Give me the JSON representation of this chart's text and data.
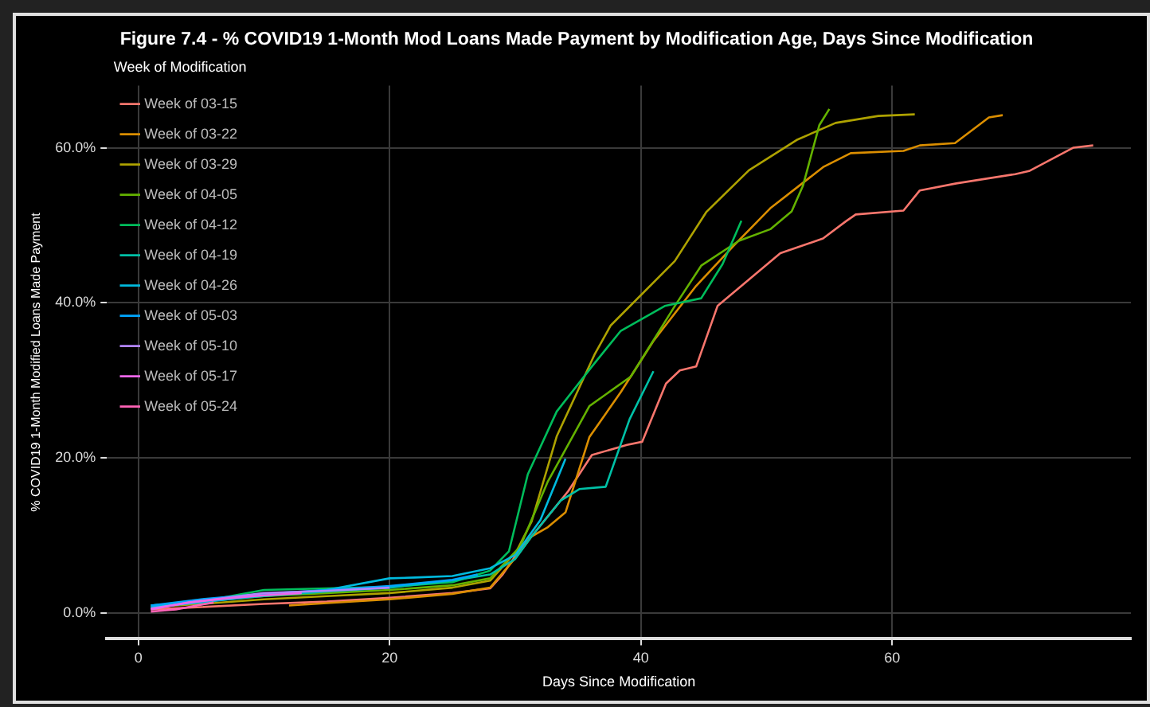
{
  "chart_data": {
    "type": "line",
    "title": "Figure 7.4 - % COVID19 1-Month Mod Loans Made Payment by Modification Age, Days Since Modification",
    "xlabel": "Days Since Modification",
    "ylabel": "% COVID19 1-Month Modified Loans Made Payment",
    "legend_title": "Week of Modification",
    "legend": "top left",
    "grid": true,
    "marker": "none",
    "line_style": "solid",
    "xlim": [
      -2.5,
      79
    ],
    "xticks": [
      0,
      20,
      40,
      60
    ],
    "ylim": [
      -3.3,
      68
    ],
    "yticks": [
      {
        "value": 0,
        "label": "0.0%"
      },
      {
        "value": 20,
        "label": "20.0%"
      },
      {
        "value": 40,
        "label": "40.0%"
      },
      {
        "value": 60,
        "label": "60.0%"
      }
    ],
    "series": [
      {
        "name": "Week of 03-15",
        "color": "#f8766d",
        "x": [
          1,
          5,
          10,
          15,
          20,
          25,
          28,
          29,
          30.1,
          31.6,
          34.2,
          36.1,
          38.9,
          40.1,
          42,
          43.1,
          44.4,
          46.1,
          51.1,
          54.5,
          56.3,
          57.1,
          60.9,
          62.2,
          65.1,
          69.8,
          70.9,
          74.4,
          76
        ],
        "values": [
          0.5,
          0.8,
          1.2,
          1.5,
          2,
          2.6,
          3.2,
          5,
          7.6,
          10.5,
          15.7,
          20.4,
          21.7,
          22.1,
          29.6,
          31.3,
          31.8,
          39.6,
          46.4,
          48.3,
          50.5,
          51.4,
          51.9,
          54.5,
          55.4,
          56.6,
          57,
          60,
          60.3
        ]
      },
      {
        "name": "Week of 03-22",
        "color": "#db8e00",
        "x": [
          12,
          15,
          20,
          25,
          28,
          30.1,
          31.3,
          32.6,
          34,
          35.9,
          38.4,
          41,
          44.4,
          47.4,
          50.3,
          54.5,
          56.7,
          60.9,
          62.2,
          65,
          67.7,
          68.8
        ],
        "values": [
          1,
          1.3,
          1.8,
          2.5,
          3.3,
          7.3,
          9.9,
          11.1,
          13,
          22.7,
          28.5,
          35.1,
          42.2,
          47.4,
          52.2,
          57.5,
          59.3,
          59.6,
          60.3,
          60.6,
          63.9,
          64.2
        ]
      },
      {
        "name": "Week of 03-29",
        "color": "#aea200",
        "x": [
          1,
          5,
          10,
          15,
          20,
          25,
          28,
          30.1,
          31.3,
          33.3,
          36.3,
          37.6,
          42.7,
          45.2,
          48.6,
          52.4,
          55.5,
          58.9,
          61.8
        ],
        "values": [
          0.8,
          1.2,
          1.8,
          2.2,
          2.6,
          3.3,
          4.2,
          8,
          11.8,
          22.8,
          33.3,
          37.1,
          45.4,
          51.7,
          57.1,
          61,
          63.2,
          64.1,
          64.3
        ]
      },
      {
        "name": "Week of 04-05",
        "color": "#64b200",
        "x": [
          1,
          5,
          10,
          15,
          20,
          25,
          28,
          30.4,
          32.6,
          35.9,
          39.2,
          42.7,
          44.8,
          47.8,
          50.3,
          52,
          52.9,
          54.2,
          55
        ],
        "values": [
          1,
          1.5,
          2.2,
          2.6,
          3,
          3.6,
          4.5,
          8.6,
          17,
          26.7,
          30.5,
          39.6,
          44.8,
          48,
          49.5,
          51.8,
          55.1,
          62.9,
          65
        ]
      },
      {
        "name": "Week of 04-12",
        "color": "#00bd5c",
        "x": [
          1,
          5,
          10,
          15,
          20,
          25,
          28,
          29.5,
          31,
          33.3,
          36.1,
          38.4,
          41.9,
          44.8,
          46.5,
          48
        ],
        "values": [
          0.7,
          1.5,
          3,
          3.2,
          3.4,
          4,
          5.5,
          8,
          17.9,
          26,
          31.8,
          36.4,
          39.6,
          40.6,
          45,
          50.6
        ]
      },
      {
        "name": "Week of 04-19",
        "color": "#00c1a7",
        "x": [
          1,
          5,
          10,
          15,
          20,
          25,
          28,
          30,
          31.3,
          33.6,
          35.1,
          37.2,
          39.1,
          41
        ],
        "values": [
          1,
          1.5,
          2.2,
          2.8,
          3.3,
          4.2,
          5,
          7,
          9.9,
          14.5,
          16,
          16.3,
          25,
          31.2
        ]
      },
      {
        "name": "Week of 04-26",
        "color": "#00bade",
        "x": [
          1,
          5,
          10,
          15,
          20,
          22,
          25,
          28,
          30,
          32,
          34
        ],
        "values": [
          0.8,
          1.4,
          2.3,
          3,
          4.5,
          4.6,
          4.8,
          5.8,
          7.5,
          12,
          19.9
        ]
      },
      {
        "name": "Week of 05-03",
        "color": "#00a6ff",
        "x": [
          1,
          5,
          10,
          15,
          20,
          25,
          27
        ],
        "values": [
          1,
          1.8,
          2.5,
          3,
          3.5,
          4.3,
          5
        ]
      },
      {
        "name": "Week of 05-10",
        "color": "#b385ff",
        "x": [
          1,
          5,
          10,
          15,
          20
        ],
        "values": [
          0.6,
          1.6,
          2.6,
          2.9,
          3.3
        ]
      },
      {
        "name": "Week of 05-17",
        "color": "#ef67eb",
        "x": [
          1,
          4,
          7,
          10,
          13
        ],
        "values": [
          0.5,
          1.4,
          1.9,
          2.3,
          2.6
        ]
      },
      {
        "name": "Week of 05-24",
        "color": "#ff63b6",
        "x": [
          1,
          3,
          6
        ],
        "values": [
          0.2,
          0.5,
          1.4
        ]
      }
    ]
  }
}
